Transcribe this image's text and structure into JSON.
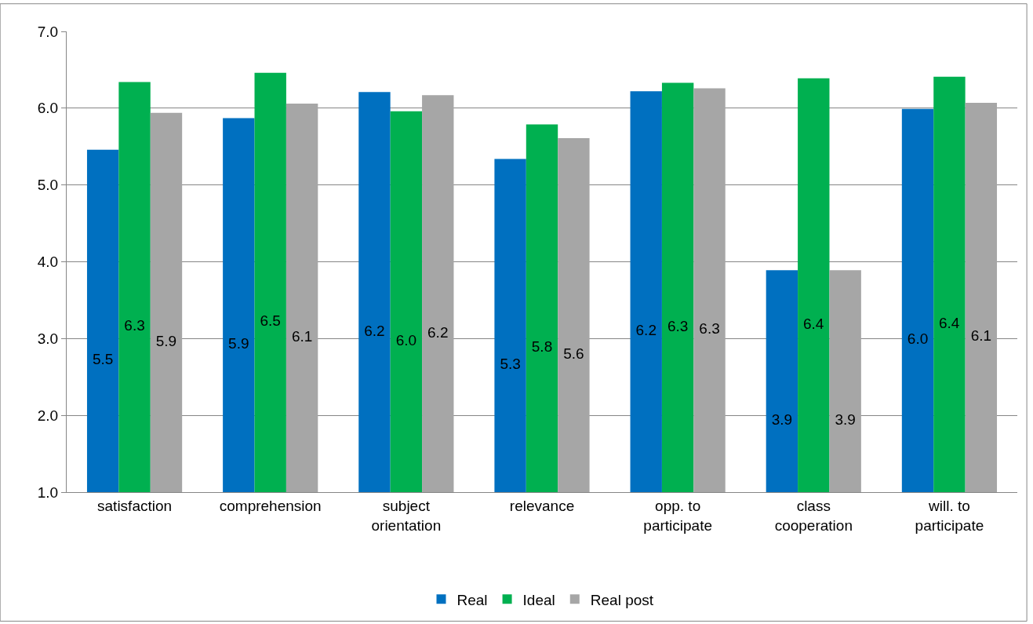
{
  "chart_data": {
    "type": "bar",
    "categories": [
      "satisfaction",
      "comprehension",
      "subject orientation",
      "relevance",
      "opp. to participate",
      "class cooperation",
      "will. to participate"
    ],
    "series": [
      {
        "name": "Real",
        "color": "#0070c0",
        "values": [
          5.46,
          5.87,
          6.21,
          5.34,
          6.22,
          3.89,
          5.99
        ],
        "value_labels": [
          "5.5",
          "5.9",
          "6.2",
          "5.3",
          "6.2",
          "3.9",
          "6.0"
        ]
      },
      {
        "name": "Ideal",
        "color": "#00b050",
        "values": [
          6.34,
          6.46,
          5.96,
          5.79,
          6.33,
          6.39,
          6.41
        ],
        "value_labels": [
          "6.3",
          "6.5",
          "6.0",
          "5.8",
          "6.3",
          "6.4",
          "6.4"
        ]
      },
      {
        "name": "Real post",
        "color": "#a6a6a6",
        "values": [
          5.94,
          6.06,
          6.17,
          5.61,
          6.26,
          3.89,
          6.07
        ],
        "value_labels": [
          "5.9",
          "6.1",
          "6.2",
          "5.6",
          "6.3",
          "3.9",
          "6.1"
        ]
      }
    ],
    "ylim": [
      1,
      7
    ],
    "yticks": [
      {
        "value": 1,
        "label": "1.0"
      },
      {
        "value": 2,
        "label": "2.0"
      },
      {
        "value": 3,
        "label": "3.0"
      },
      {
        "value": 4,
        "label": "4.0"
      },
      {
        "value": 5,
        "label": "5.0"
      },
      {
        "value": 6,
        "label": "6.0"
      },
      {
        "value": 7,
        "label": "7.0"
      }
    ],
    "grid": "y",
    "legend": "bottom"
  }
}
